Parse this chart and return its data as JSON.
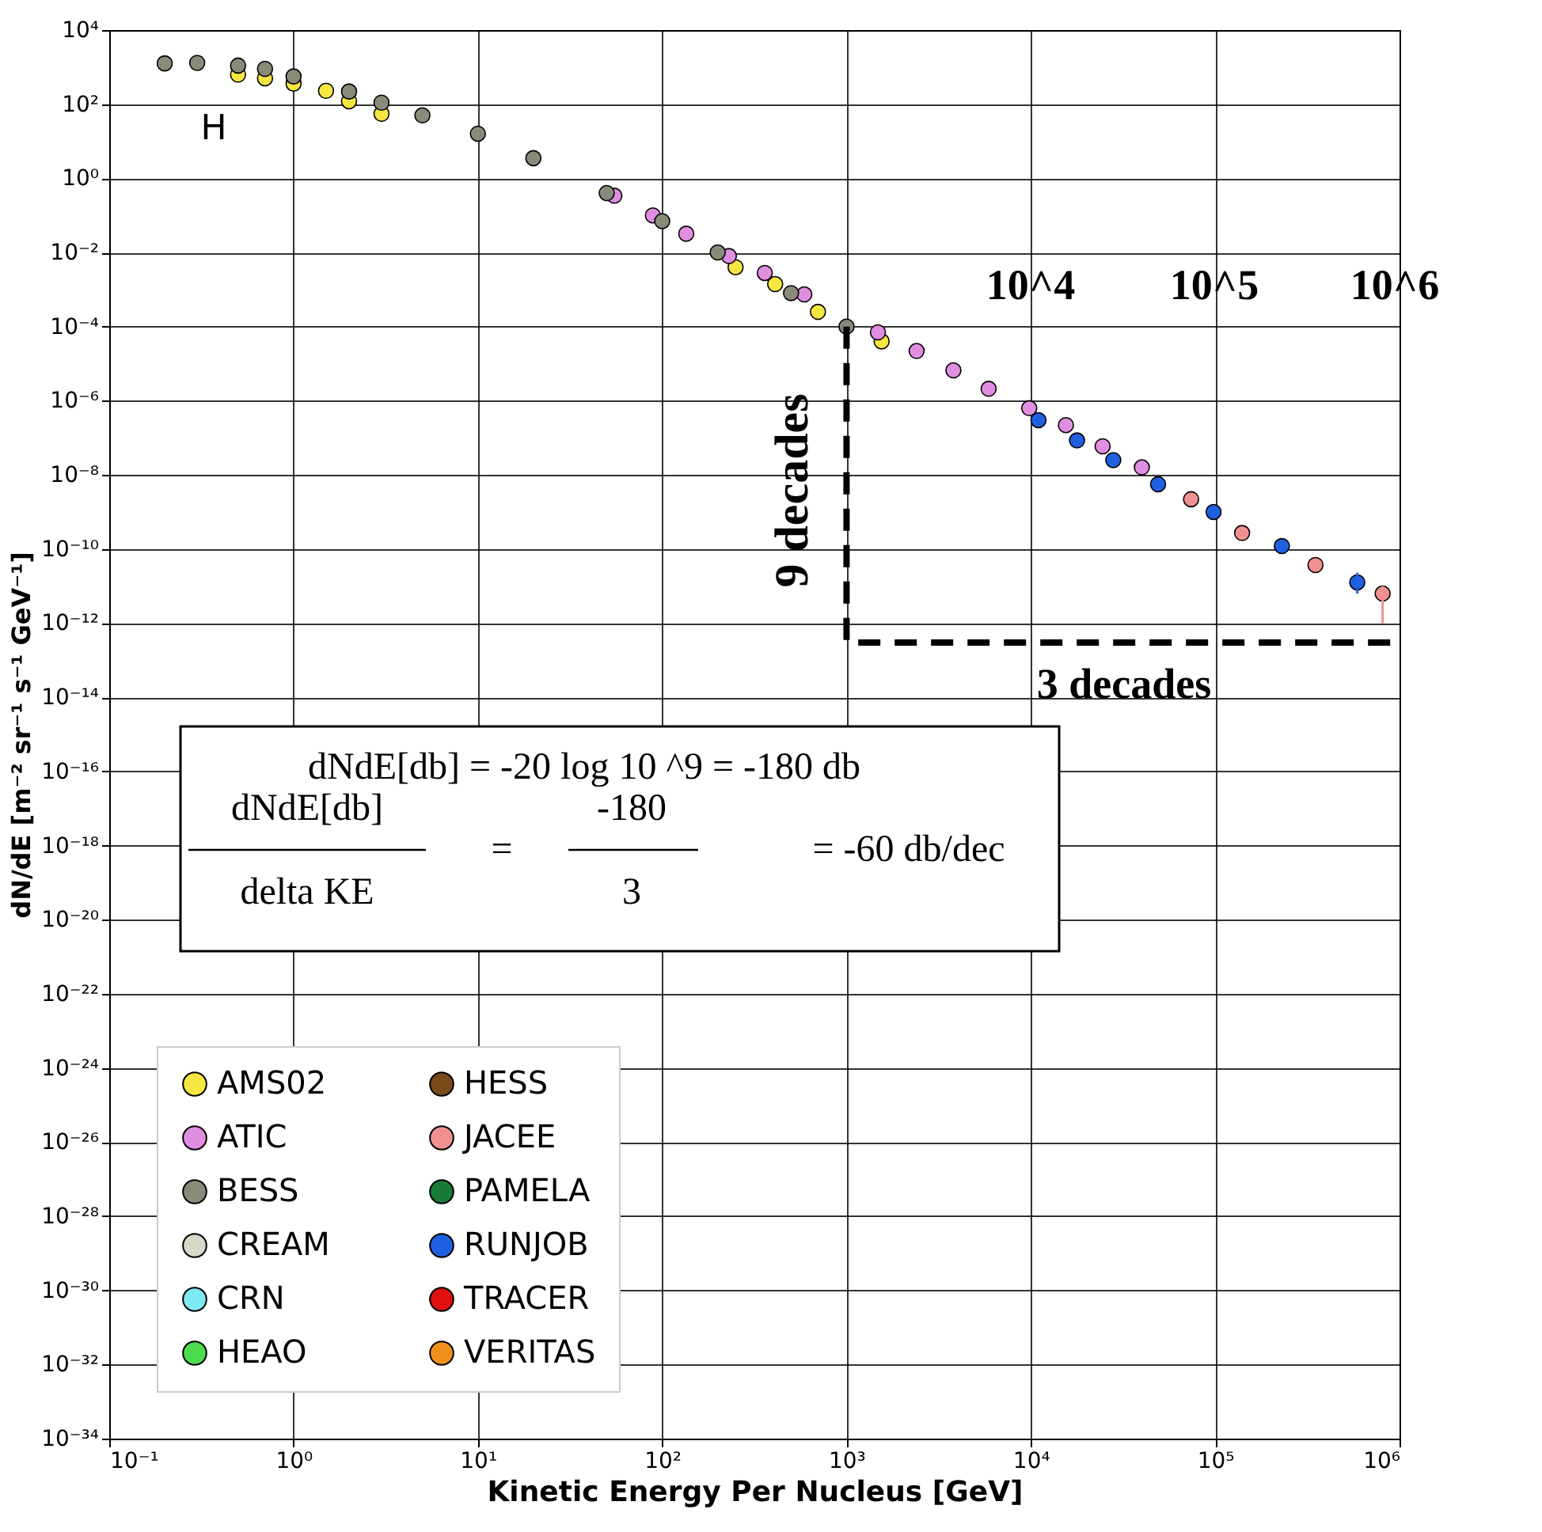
{
  "chart_data": {
    "type": "scatter",
    "xlabel": "Kinetic Energy Per Nucleus [GeV]",
    "ylabel": "dN/dE [m⁻² sr⁻¹ s⁻¹ GeV⁻¹]",
    "log": "xy",
    "grid": true,
    "legend": "bottom left",
    "marker": "circle",
    "xlim": [
      0.1,
      1000000
    ],
    "ylim": [
      1e-34,
      10000
    ],
    "xticks": [
      {
        "value": 0.1,
        "label": "10⁻¹"
      },
      {
        "value": 1,
        "label": "10⁰"
      },
      {
        "value": 10,
        "label": "10¹"
      },
      {
        "value": 100,
        "label": "10²"
      },
      {
        "value": 1000,
        "label": "10³"
      },
      {
        "value": 10000,
        "label": "10⁴"
      },
      {
        "value": 100000,
        "label": "10⁵"
      },
      {
        "value": 1000000,
        "label": "10⁶"
      }
    ],
    "yticks": [
      {
        "value": 10000,
        "label": "10⁴"
      },
      {
        "value": 100,
        "label": "10²"
      },
      {
        "value": 1,
        "label": "10⁰"
      },
      {
        "value": 0.01,
        "label": "10⁻²"
      },
      {
        "value": 0.0001,
        "label": "10⁻⁴"
      },
      {
        "value": 1e-06,
        "label": "10⁻⁶"
      },
      {
        "value": 1e-08,
        "label": "10⁻⁸"
      },
      {
        "value": 1e-10,
        "label": "10⁻¹⁰"
      },
      {
        "value": 1e-12,
        "label": "10⁻¹²"
      },
      {
        "value": 1e-14,
        "label": "10⁻¹⁴"
      },
      {
        "value": 1e-16,
        "label": "10⁻¹⁶"
      },
      {
        "value": 1e-18,
        "label": "10⁻¹⁸"
      },
      {
        "value": 1e-20,
        "label": "10⁻²⁰"
      },
      {
        "value": 1e-22,
        "label": "10⁻²²"
      },
      {
        "value": 1e-24,
        "label": "10⁻²⁴"
      },
      {
        "value": 1e-26,
        "label": "10⁻²⁶"
      },
      {
        "value": 1e-28,
        "label": "10⁻²⁸"
      },
      {
        "value": 1e-30,
        "label": "10⁻³⁰"
      },
      {
        "value": 1e-32,
        "label": "10⁻³²"
      },
      {
        "value": 1e-34,
        "label": "10⁻³⁴"
      }
    ],
    "series": [
      {
        "name": "AMS02",
        "color": "#f5e642",
        "x": [
          0.5,
          0.7,
          1,
          1.5,
          2,
          3,
          250,
          410,
          700,
          1550
        ],
        "values": [
          630,
          500,
          360,
          230,
          120,
          55,
          0.004,
          0.0014,
          0.00025,
          4e-05
        ]
      },
      {
        "name": "ATIC",
        "color": "#e08ee0",
        "x": [
          55,
          89,
          135,
          230,
          360,
          590,
          1480,
          2400,
          3800,
          5900,
          9800,
          15500,
          24500,
          40000
        ],
        "values": [
          0.34,
          0.1,
          0.032,
          0.008,
          0.0028,
          0.00074,
          7e-05,
          2.2e-05,
          6.6e-06,
          2.1e-06,
          6.3e-07,
          2.2e-07,
          5.9e-08,
          1.6e-08
        ]
      },
      {
        "name": "BESS",
        "color": "#8a8a7a",
        "x": [
          0.2,
          0.3,
          0.5,
          0.7,
          1,
          2,
          3,
          5,
          10,
          20,
          50,
          100,
          200,
          500,
          1000
        ],
        "values": [
          1260,
          1300,
          1100,
          900,
          560,
          220,
          110,
          50,
          16,
          3.5,
          0.4,
          0.07,
          0.01,
          0.0008,
          0.0001
        ]
      },
      {
        "name": "CREAM",
        "color": "#d8d8c8"
      },
      {
        "name": "CRN",
        "color": "#7fe8f0"
      },
      {
        "name": "HEAO",
        "color": "#4ddc4d"
      },
      {
        "name": "HESS",
        "color": "#7a4a1a"
      },
      {
        "name": "JACEE",
        "color": "#f09090",
        "x": [
          74000,
          140000,
          350000,
          810000
        ],
        "values": [
          2.2e-09,
          2.7e-10,
          3.7e-11,
          6.3e-12
        ],
        "errors": [
          null,
          null,
          null,
          [
            1e-12,
            1e-11
          ]
        ]
      },
      {
        "name": "PAMELA",
        "color": "#1a7a3a"
      },
      {
        "name": "RUNJOB",
        "color": "#2060e0",
        "x": [
          11000,
          17800,
          28000,
          49000,
          98000,
          230000,
          590000
        ],
        "values": [
          3e-07,
          8.5e-08,
          2.5e-08,
          5.6e-09,
          1e-09,
          1.2e-10,
          1.26e-11
        ],
        "errors": [
          null,
          null,
          null,
          null,
          null,
          null,
          [
            6.3e-12,
            2.3e-11
          ]
        ]
      },
      {
        "name": "TRACER",
        "color": "#e01010"
      },
      {
        "name": "VERITAS",
        "color": "#f0901a"
      },
      {
        "type": "line",
        "color": "#000000",
        "line_style": "dashed",
        "marker": "none",
        "x": [
          1000,
          1000,
          1000000
        ],
        "values": [
          0.0001,
          3e-13,
          3e-13
        ]
      }
    ],
    "annotations": [
      "H",
      "10^4",
      "10^5",
      "10^6",
      "9 decades",
      "3 decades",
      "dNdE[db] = -20 log 10 ^9  =   -180  db",
      "dNdE[db]",
      "delta KE",
      "=",
      "-180",
      "3",
      "= -60 db/dec"
    ]
  }
}
